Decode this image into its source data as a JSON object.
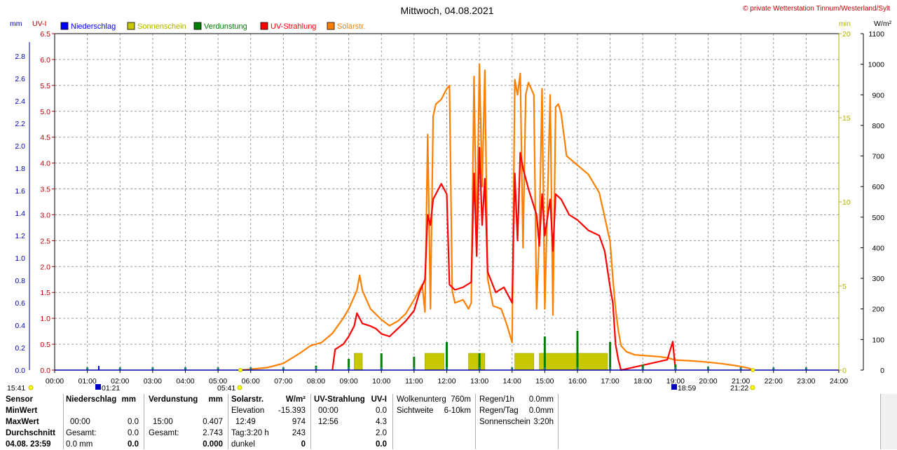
{
  "header": {
    "title": "Mittwoch, 04.08.2021",
    "copyright": "© private Wetterstation Tinnum/Westerland/Sylt"
  },
  "legend": [
    {
      "label": "Niederschlag",
      "color": "#0000ff"
    },
    {
      "label": "Sonnenschein",
      "color": "#c8c800"
    },
    {
      "label": "Verdunstung",
      "color": "#008000"
    },
    {
      "label": "UV-Strahlung",
      "color": "#ff0000"
    },
    {
      "label": "Solarstr.",
      "color": "#ff8000"
    }
  ],
  "axes": {
    "mm_unit": "mm",
    "uv_unit": "UV-I",
    "min_unit": "min",
    "wm2_unit": "W/m²",
    "mm_ticks": [
      "0.0",
      "0.2",
      "0.4",
      "0.6",
      "0.8",
      "1.0",
      "1.2",
      "1.4",
      "1.6",
      "1.8",
      "2.0",
      "2.2",
      "2.4",
      "2.6",
      "2.8"
    ],
    "uv_ticks": [
      "0.0",
      "0.5",
      "1.0",
      "1.5",
      "2.0",
      "2.5",
      "3.0",
      "3.5",
      "4.0",
      "4.5",
      "5.0",
      "5.5",
      "6.0",
      "6.5"
    ],
    "min_ticks": [
      "0",
      "5",
      "10",
      "15",
      "20"
    ],
    "wm2_ticks": [
      "0",
      "100",
      "200",
      "300",
      "400",
      "500",
      "600",
      "700",
      "800",
      "900",
      "1000",
      "1100"
    ],
    "x_ticks": [
      "00:00",
      "01:00",
      "02:00",
      "03:00",
      "04:00",
      "05:00",
      "06:00",
      "07:00",
      "08:00",
      "09:00",
      "10:00",
      "11:00",
      "12:00",
      "13:00",
      "14:00",
      "15:00",
      "16:00",
      "17:00",
      "18:00",
      "19:00",
      "20:00",
      "21:00",
      "22:00",
      "23:00",
      "24:00"
    ]
  },
  "sun_markers": {
    "moonset": "15:41",
    "moonrise": "01:21",
    "sunrise": "05:41",
    "sunset_marker": "18:59",
    "sunset": "21:22"
  },
  "chart_data": {
    "type": "line",
    "title": "Mittwoch, 04.08.2021",
    "x_range": [
      "00:00",
      "24:00"
    ],
    "y_axes": {
      "niederschlag_mm": [
        0,
        3.0
      ],
      "uv_index": [
        0,
        6.5
      ],
      "sonnenschein_min": [
        0,
        20
      ],
      "solar_wm2": [
        0,
        1100
      ]
    },
    "grid": true,
    "legend_position": "top-left",
    "series": [
      {
        "name": "Solarstr.",
        "axis": "solar_wm2",
        "color": "#ff8000",
        "points": [
          [
            "05:41",
            0
          ],
          [
            "06:00",
            3
          ],
          [
            "06:30",
            8
          ],
          [
            "07:00",
            22
          ],
          [
            "07:30",
            55
          ],
          [
            "07:50",
            80
          ],
          [
            "08:10",
            90
          ],
          [
            "08:30",
            120
          ],
          [
            "08:50",
            170
          ],
          [
            "09:00",
            200
          ],
          [
            "09:15",
            260
          ],
          [
            "09:20",
            310
          ],
          [
            "09:25",
            260
          ],
          [
            "09:40",
            200
          ],
          [
            "10:00",
            165
          ],
          [
            "10:15",
            145
          ],
          [
            "10:30",
            160
          ],
          [
            "10:45",
            185
          ],
          [
            "11:00",
            230
          ],
          [
            "11:15",
            280
          ],
          [
            "11:20",
            190
          ],
          [
            "11:25",
            770
          ],
          [
            "11:30",
            200
          ],
          [
            "11:35",
            830
          ],
          [
            "11:40",
            870
          ],
          [
            "11:50",
            885
          ],
          [
            "12:00",
            920
          ],
          [
            "12:05",
            930
          ],
          [
            "12:10",
            260
          ],
          [
            "12:15",
            220
          ],
          [
            "12:30",
            230
          ],
          [
            "12:40",
            200
          ],
          [
            "12:45",
            220
          ],
          [
            "12:50",
            960
          ],
          [
            "12:55",
            400
          ],
          [
            "13:00",
            1000
          ],
          [
            "13:05",
            600
          ],
          [
            "13:10",
            980
          ],
          [
            "13:15",
            300
          ],
          [
            "13:25",
            210
          ],
          [
            "13:40",
            200
          ],
          [
            "13:50",
            150
          ],
          [
            "14:00",
            90
          ],
          [
            "14:05",
            950
          ],
          [
            "14:10",
            900
          ],
          [
            "14:15",
            970
          ],
          [
            "14:20",
            400
          ],
          [
            "14:25",
            900
          ],
          [
            "14:30",
            940
          ],
          [
            "14:40",
            900
          ],
          [
            "14:45",
            200
          ],
          [
            "14:50",
            450
          ],
          [
            "14:55",
            920
          ],
          [
            "15:00",
            200
          ],
          [
            "15:10",
            900
          ],
          [
            "15:15",
            180
          ],
          [
            "15:20",
            860
          ],
          [
            "15:25",
            870
          ],
          [
            "15:30",
            840
          ],
          [
            "15:40",
            700
          ],
          [
            "16:00",
            670
          ],
          [
            "16:20",
            640
          ],
          [
            "16:40",
            580
          ],
          [
            "16:50",
            500
          ],
          [
            "17:00",
            420
          ],
          [
            "17:05",
            300
          ],
          [
            "17:10",
            200
          ],
          [
            "17:15",
            130
          ],
          [
            "17:20",
            80
          ],
          [
            "17:30",
            60
          ],
          [
            "17:45",
            50
          ],
          [
            "18:00",
            48
          ],
          [
            "18:30",
            44
          ],
          [
            "18:45",
            40
          ],
          [
            "19:00",
            33
          ],
          [
            "19:30",
            30
          ],
          [
            "20:00",
            26
          ],
          [
            "20:30",
            20
          ],
          [
            "21:00",
            12
          ],
          [
            "21:15",
            6
          ],
          [
            "21:22",
            0
          ]
        ]
      },
      {
        "name": "UV-Strahlung",
        "axis": "uv_index",
        "color": "#ff0000",
        "points": [
          [
            "08:30",
            0
          ],
          [
            "08:35",
            0.4
          ],
          [
            "08:50",
            0.5
          ],
          [
            "09:00",
            0.65
          ],
          [
            "09:10",
            0.85
          ],
          [
            "09:15",
            1.1
          ],
          [
            "09:25",
            0.9
          ],
          [
            "09:40",
            0.85
          ],
          [
            "09:50",
            0.8
          ],
          [
            "10:00",
            0.7
          ],
          [
            "10:15",
            0.65
          ],
          [
            "10:30",
            0.8
          ],
          [
            "10:45",
            0.95
          ],
          [
            "11:00",
            1.15
          ],
          [
            "11:10",
            1.5
          ],
          [
            "11:20",
            1.75
          ],
          [
            "11:25",
            3.0
          ],
          [
            "11:30",
            2.8
          ],
          [
            "11:35",
            3.3
          ],
          [
            "11:45",
            3.5
          ],
          [
            "11:50",
            3.6
          ],
          [
            "12:00",
            3.4
          ],
          [
            "12:05",
            1.65
          ],
          [
            "12:15",
            1.55
          ],
          [
            "12:30",
            1.6
          ],
          [
            "12:45",
            1.7
          ],
          [
            "12:50",
            3.8
          ],
          [
            "12:55",
            2.2
          ],
          [
            "13:00",
            4.3
          ],
          [
            "13:05",
            2.8
          ],
          [
            "13:10",
            3.7
          ],
          [
            "13:15",
            1.9
          ],
          [
            "13:30",
            1.5
          ],
          [
            "13:45",
            1.6
          ],
          [
            "14:00",
            1.3
          ],
          [
            "14:05",
            3.8
          ],
          [
            "14:10",
            2.5
          ],
          [
            "14:15",
            4.2
          ],
          [
            "14:20",
            3.9
          ],
          [
            "14:30",
            3.5
          ],
          [
            "14:45",
            3.0
          ],
          [
            "14:50",
            2.4
          ],
          [
            "14:55",
            3.4
          ],
          [
            "15:00",
            2.6
          ],
          [
            "15:10",
            3.3
          ],
          [
            "15:15",
            2.3
          ],
          [
            "15:20",
            3.4
          ],
          [
            "15:30",
            3.3
          ],
          [
            "15:45",
            3.0
          ],
          [
            "16:00",
            2.9
          ],
          [
            "16:20",
            2.7
          ],
          [
            "16:40",
            2.6
          ],
          [
            "16:50",
            2.3
          ],
          [
            "17:00",
            1.6
          ],
          [
            "17:05",
            1.3
          ],
          [
            "17:10",
            0.5
          ],
          [
            "17:15",
            0.2
          ],
          [
            "17:20",
            0.0
          ],
          [
            "18:45",
            0.2
          ],
          [
            "18:55",
            0.55
          ],
          [
            "19:00",
            0.0
          ]
        ]
      },
      {
        "name": "Sonnenschein",
        "axis": "sonnenschein_min",
        "color": "#c8c800",
        "bars": [
          [
            "09:10",
            "09:25",
            1
          ],
          [
            "11:20",
            "11:55",
            1
          ],
          [
            "12:40",
            "13:10",
            1
          ],
          [
            "14:05",
            "14:40",
            1
          ],
          [
            "14:50",
            "16:55",
            1
          ]
        ]
      },
      {
        "name": "Verdunstung",
        "axis": "niederschlag_mm",
        "color": "#008000",
        "spikes": [
          [
            "08:00",
            0.04
          ],
          [
            "09:00",
            0.1
          ],
          [
            "10:00",
            0.15
          ],
          [
            "11:00",
            0.12
          ],
          [
            "12:00",
            0.25
          ],
          [
            "13:00",
            0.15
          ],
          [
            "15:00",
            0.3
          ],
          [
            "16:00",
            0.35
          ],
          [
            "17:00",
            0.25
          ],
          [
            "18:00",
            0.05
          ],
          [
            "19:00",
            0.05
          ],
          [
            "20:00",
            0.03
          ]
        ]
      },
      {
        "name": "Niederschlag",
        "axis": "niederschlag_mm",
        "color": "#0000ff",
        "values": []
      }
    ]
  },
  "stats": {
    "col1": {
      "labels": [
        "Sensor",
        "MinWert",
        "MaxWert",
        "Durchschnitt",
        "04.08. 23:59"
      ]
    },
    "col2": {
      "title": "Niederschlag",
      "unit": "mm",
      "rows": [
        [
          "",
          ""
        ],
        [
          "00:00",
          "0.0"
        ],
        [
          "Gesamt:",
          "0.0"
        ],
        [
          "0.0 mm",
          "0.0"
        ]
      ]
    },
    "col3": {
      "title": "Verdunstung",
      "unit": "mm",
      "rows": [
        [
          "",
          ""
        ],
        [
          "15:00",
          "0.407"
        ],
        [
          "Gesamt:",
          "2.743"
        ],
        [
          "",
          "0.000"
        ]
      ]
    },
    "col4": {
      "title": "Solarstr.",
      "unit": "W/m²",
      "rows": [
        [
          "Elevation",
          "-15.393"
        ],
        [
          "12:49",
          "974"
        ],
        [
          "Tag:3:20 h",
          "243"
        ],
        [
          "dunkel",
          "0"
        ]
      ]
    },
    "col5": {
      "title": "UV-Strahlung",
      "unit": "UV-I",
      "rows": [
        [
          "00:00",
          "0.0"
        ],
        [
          "12:56",
          "4.3"
        ],
        [
          "",
          "2.0"
        ],
        [
          "",
          "0.0"
        ]
      ]
    },
    "col6": {
      "rows": [
        [
          "Wolkenunterg",
          "760m"
        ],
        [
          "Sichtweite",
          "6-10km"
        ]
      ]
    },
    "col7": {
      "rows": [
        [
          "Regen/1h",
          "0.0mm"
        ],
        [
          "Regen/Tag",
          "0.0mm"
        ],
        [
          "Sonnenschein",
          "3:20h"
        ]
      ]
    }
  }
}
